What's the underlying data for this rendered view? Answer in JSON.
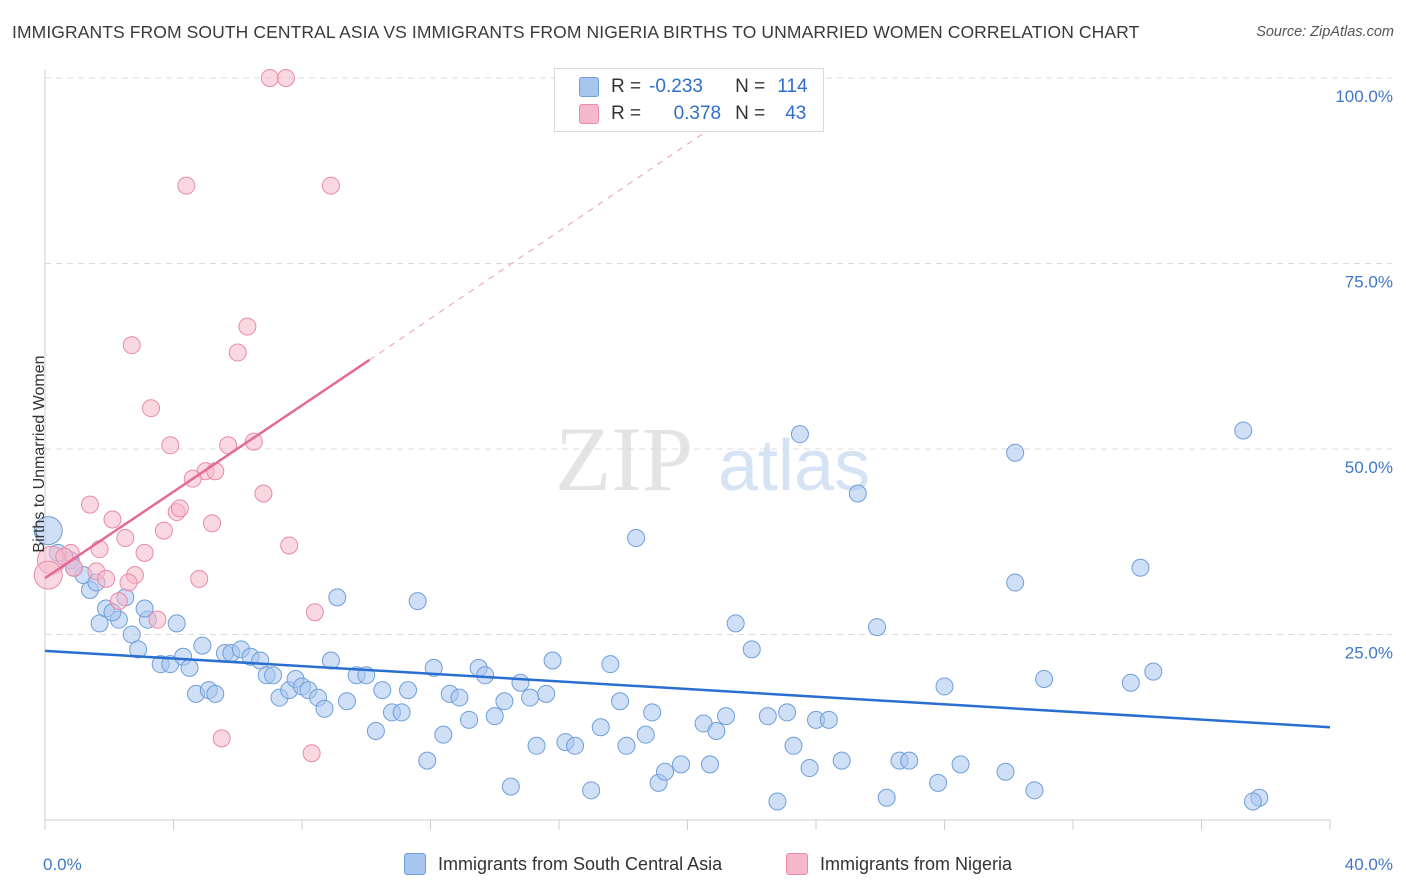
{
  "title": "IMMIGRANTS FROM SOUTH CENTRAL ASIA VS IMMIGRANTS FROM NIGERIA BIRTHS TO UNMARRIED WOMEN CORRELATION CHART",
  "source": "Source: ZipAtlas.com",
  "watermark": {
    "zip": "ZIP",
    "atlas": "atlas"
  },
  "legend_top": {
    "rows": [
      {
        "r_label": "R =",
        "r_value": "-0.233",
        "n_label": "N =",
        "n_value": "114"
      },
      {
        "r_label": "R =",
        "r_value": "0.378",
        "n_label": "N =",
        "n_value": "43"
      }
    ]
  },
  "chart_data": {
    "type": "scatter",
    "title": "IMMIGRANTS FROM SOUTH CENTRAL ASIA VS IMMIGRANTS FROM NIGERIA BIRTHS TO UNMARRIED WOMEN CORRELATION CHART",
    "xlabel": "",
    "ylabel": "Births to Unmarried Women",
    "xlim": [
      0,
      40
    ],
    "ylim": [
      0,
      100
    ],
    "x_tick_labels": [
      "0.0%",
      "40.0%"
    ],
    "y_tick_labels": [
      "100.0%",
      "75.0%",
      "50.0%",
      "25.0%"
    ],
    "y_ticks": [
      100,
      75,
      50,
      25
    ],
    "grid": true,
    "legend_placement": "bottom",
    "series": [
      {
        "name": "Immigrants from South Central Asia",
        "color": "#a7c5ee",
        "stroke": "#6f9fd9",
        "trend_color": "#2a6fd0",
        "trend": {
          "x": [
            0,
            40
          ],
          "y": [
            22.8,
            12.5
          ]
        },
        "points": [
          [
            0.1,
            39
          ],
          [
            0.4,
            36
          ],
          [
            0.8,
            35
          ],
          [
            1.2,
            33
          ],
          [
            0.9,
            34
          ],
          [
            1.4,
            31
          ],
          [
            1.6,
            32
          ],
          [
            1.7,
            26.5
          ],
          [
            2.3,
            27
          ],
          [
            1.9,
            28.5
          ],
          [
            2.5,
            30
          ],
          [
            2.1,
            28
          ],
          [
            3.2,
            27
          ],
          [
            3.1,
            28.5
          ],
          [
            2.7,
            25
          ],
          [
            2.9,
            23
          ],
          [
            3.6,
            21
          ],
          [
            3.9,
            21
          ],
          [
            4.1,
            26.5
          ],
          [
            4.3,
            22
          ],
          [
            4.5,
            20.5
          ],
          [
            4.7,
            17
          ],
          [
            4.9,
            23.5
          ],
          [
            5.1,
            17.5
          ],
          [
            5.3,
            17
          ],
          [
            5.6,
            22.5
          ],
          [
            5.8,
            22.5
          ],
          [
            6.1,
            23
          ],
          [
            6.4,
            22
          ],
          [
            6.7,
            21.5
          ],
          [
            6.9,
            19.5
          ],
          [
            7.1,
            19.5
          ],
          [
            7.3,
            16.5
          ],
          [
            7.6,
            17.5
          ],
          [
            7.8,
            19
          ],
          [
            8.0,
            18
          ],
          [
            8.2,
            17.5
          ],
          [
            8.5,
            16.5
          ],
          [
            8.7,
            15
          ],
          [
            8.9,
            21.5
          ],
          [
            9.1,
            30
          ],
          [
            9.4,
            16
          ],
          [
            9.7,
            19.5
          ],
          [
            10.0,
            19.5
          ],
          [
            10.3,
            12
          ],
          [
            10.5,
            17.5
          ],
          [
            10.8,
            14.5
          ],
          [
            11.1,
            14.5
          ],
          [
            11.3,
            17.5
          ],
          [
            11.6,
            29.5
          ],
          [
            11.9,
            8
          ],
          [
            12.1,
            20.5
          ],
          [
            12.4,
            11.5
          ],
          [
            12.6,
            17
          ],
          [
            12.9,
            16.5
          ],
          [
            13.2,
            13.5
          ],
          [
            13.5,
            20.5
          ],
          [
            13.7,
            19.5
          ],
          [
            14.0,
            14
          ],
          [
            14.3,
            16
          ],
          [
            14.5,
            4.5
          ],
          [
            14.8,
            18.5
          ],
          [
            15.1,
            16.5
          ],
          [
            15.3,
            10
          ],
          [
            15.6,
            17
          ],
          [
            15.8,
            21.5
          ],
          [
            16.2,
            10.5
          ],
          [
            16.5,
            10
          ],
          [
            17.0,
            4
          ],
          [
            17.3,
            12.5
          ],
          [
            17.6,
            21
          ],
          [
            17.9,
            16
          ],
          [
            18.1,
            10
          ],
          [
            18.4,
            38
          ],
          [
            18.7,
            11.5
          ],
          [
            18.9,
            14.5
          ],
          [
            19.1,
            5
          ],
          [
            19.3,
            6.5
          ],
          [
            19.8,
            7.5
          ],
          [
            20.5,
            13
          ],
          [
            20.7,
            7.5
          ],
          [
            20.9,
            12
          ],
          [
            21.2,
            14
          ],
          [
            21.5,
            26.5
          ],
          [
            22.0,
            23
          ],
          [
            22.5,
            14
          ],
          [
            22.8,
            2.5
          ],
          [
            23.1,
            14.5
          ],
          [
            23.3,
            10
          ],
          [
            23.5,
            52
          ],
          [
            23.8,
            7
          ],
          [
            24.0,
            13.5
          ],
          [
            24.4,
            13.5
          ],
          [
            24.8,
            8
          ],
          [
            25.3,
            44
          ],
          [
            25.9,
            26
          ],
          [
            26.2,
            3
          ],
          [
            26.6,
            8
          ],
          [
            26.9,
            8
          ],
          [
            27.8,
            5
          ],
          [
            28.0,
            18
          ],
          [
            28.5,
            7.5
          ],
          [
            29.9,
            6.5
          ],
          [
            30.2,
            32
          ],
          [
            31.1,
            19
          ],
          [
            30.8,
            4
          ],
          [
            30.2,
            49.5
          ],
          [
            33.8,
            18.5
          ],
          [
            34.1,
            34
          ],
          [
            34.5,
            20
          ],
          [
            37.8,
            3
          ],
          [
            37.3,
            52.5
          ],
          [
            37.6,
            2.5
          ]
        ]
      },
      {
        "name": "Immigrants from Nigeria",
        "color": "#f6b8cb",
        "stroke": "#e98aa8",
        "trend_color": "#e46a96",
        "trend": {
          "x": [
            0,
            10.1
          ],
          "y": [
            32.6,
            62
          ]
        },
        "trend_extension": {
          "x": [
            10.1,
            21.5
          ],
          "y": [
            62,
            95.5
          ]
        },
        "points": [
          [
            7.0,
            100
          ],
          [
            7.5,
            100
          ],
          [
            4.4,
            85.5
          ],
          [
            8.9,
            85.5
          ],
          [
            6.3,
            66.5
          ],
          [
            6.0,
            63
          ],
          [
            2.7,
            64
          ],
          [
            3.3,
            55.5
          ],
          [
            3.9,
            50.5
          ],
          [
            5.7,
            50.5
          ],
          [
            6.5,
            51
          ],
          [
            5.0,
            47
          ],
          [
            4.6,
            46
          ],
          [
            5.3,
            47
          ],
          [
            6.8,
            44
          ],
          [
            1.4,
            42.5
          ],
          [
            4.1,
            41.5
          ],
          [
            4.2,
            42
          ],
          [
            2.1,
            40.5
          ],
          [
            5.2,
            40
          ],
          [
            3.7,
            39
          ],
          [
            2.5,
            38
          ],
          [
            7.6,
            37
          ],
          [
            0.8,
            36
          ],
          [
            1.7,
            36.5
          ],
          [
            3.1,
            36
          ],
          [
            0.2,
            35
          ],
          [
            0.6,
            35.5
          ],
          [
            0.9,
            34
          ],
          [
            1.6,
            33.5
          ],
          [
            2.8,
            33
          ],
          [
            4.8,
            32.5
          ],
          [
            1.9,
            32.5
          ],
          [
            2.6,
            32
          ],
          [
            0.1,
            33
          ],
          [
            2.3,
            29.5
          ],
          [
            3.5,
            27
          ],
          [
            8.4,
            28
          ],
          [
            5.5,
            11
          ],
          [
            8.3,
            9
          ]
        ]
      }
    ]
  },
  "legend_bottom": [
    {
      "label": "Immigrants from South Central Asia",
      "color": "#a7c5ee",
      "stroke": "#6f9fd9"
    },
    {
      "label": "Immigrants from Nigeria",
      "color": "#f6b8cb",
      "stroke": "#e98aa8"
    }
  ]
}
